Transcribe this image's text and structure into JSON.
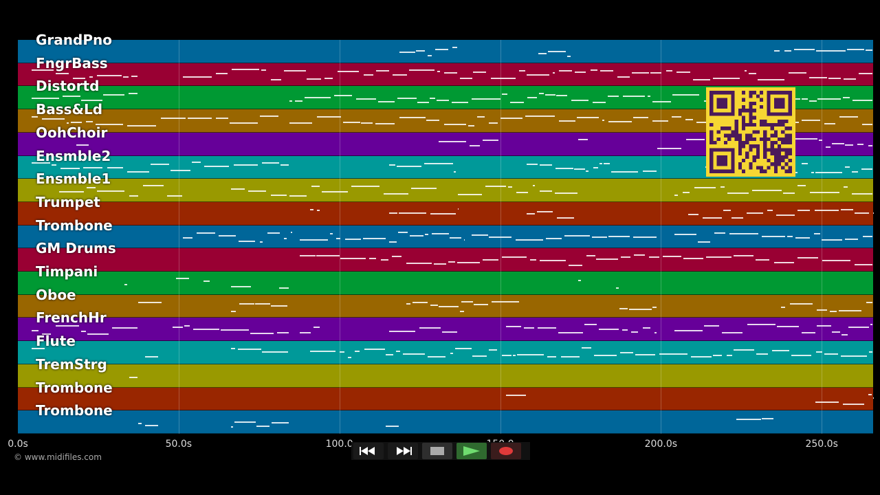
{
  "tracks": [
    {
      "name": "GrandPno",
      "color": "#006699",
      "notes": [
        [
          555,
          640
        ],
        [
          757,
          810
        ],
        [
          1100,
          1244
        ]
      ]
    },
    {
      "name": "FngrBass",
      "color": "#990033",
      "notes": [
        [
          20,
          175
        ],
        [
          240,
          420
        ],
        [
          420,
          1244
        ]
      ]
    },
    {
      "name": "Distortd",
      "color": "#009933",
      "notes": [
        [
          20,
          175
        ],
        [
          395,
          1244
        ]
      ]
    },
    {
      "name": "Bass&Ld",
      "color": "#996600",
      "notes": [
        [
          20,
          380
        ],
        [
          395,
          1244
        ]
      ]
    },
    {
      "name": "OohChoir",
      "color": "#660099",
      "notes": [
        [
          85,
          105
        ],
        [
          612,
          700
        ],
        [
          815,
          830
        ],
        [
          930,
          1000
        ],
        [
          1130,
          1244
        ]
      ]
    },
    {
      "name": "Ensmble2",
      "color": "#009999",
      "notes": [
        [
          20,
          395
        ],
        [
          540,
          640
        ],
        [
          740,
          930
        ],
        [
          1000,
          1244
        ]
      ]
    },
    {
      "name": "Ensmble1",
      "color": "#999900",
      "notes": [
        [
          60,
          240
        ],
        [
          310,
          610
        ],
        [
          640,
          815
        ],
        [
          955,
          1244
        ]
      ]
    },
    {
      "name": "Trumpet",
      "color": "#992600",
      "notes": [
        [
          425,
          440
        ],
        [
          540,
          640
        ],
        [
          740,
          810
        ],
        [
          975,
          1244
        ]
      ]
    },
    {
      "name": "Trombone",
      "color": "#006699",
      "notes": [
        [
          240,
          400
        ],
        [
          410,
          650
        ],
        [
          660,
          930
        ],
        [
          955,
          1244
        ]
      ]
    },
    {
      "name": "GM Drums",
      "color": "#990033",
      "notes": [
        [
          410,
          1244
        ]
      ]
    },
    {
      "name": "Timpani",
      "color": "#009933",
      "notes": [
        [
          155,
          160
        ],
        [
          230,
          250
        ],
        [
          270,
          280
        ],
        [
          310,
          340
        ],
        [
          380,
          395
        ],
        [
          815,
          820
        ],
        [
          870,
          875
        ]
      ]
    },
    {
      "name": "Oboe",
      "color": "#996600",
      "notes": [
        [
          175,
          210
        ],
        [
          310,
          395
        ],
        [
          565,
          650
        ],
        [
          645,
          730
        ],
        [
          875,
          930
        ],
        [
          1110,
          1244
        ]
      ]
    },
    {
      "name": "FrenchHr",
      "color": "#660099",
      "notes": [
        [
          20,
          175
        ],
        [
          225,
          395
        ],
        [
          410,
          440
        ],
        [
          540,
          640
        ],
        [
          710,
          930
        ],
        [
          955,
          1244
        ]
      ]
    },
    {
      "name": "Flute",
      "color": "#009999",
      "notes": [
        [
          20,
          40
        ],
        [
          185,
          205
        ],
        [
          310,
          395
        ],
        [
          425,
          1244
        ]
      ]
    },
    {
      "name": "TremStrg",
      "color": "#999900",
      "notes": [
        [
          162,
          175
        ]
      ]
    },
    {
      "name": "Trombone",
      "color": "#992600",
      "notes": [
        [
          710,
          740
        ],
        [
          1160,
          1244
        ]
      ]
    },
    {
      "name": "Trombone",
      "color": "#006699",
      "notes": [
        [
          175,
          205
        ],
        [
          310,
          395
        ],
        [
          535,
          555
        ],
        [
          1045,
          1100
        ]
      ]
    }
  ],
  "timeline": {
    "max_seconds": 266,
    "ticks": [
      {
        "value": 0,
        "label": "0.0s"
      },
      {
        "value": 50,
        "label": "50.0s"
      },
      {
        "value": 100,
        "label": "100.0"
      },
      {
        "value": 150,
        "label": "150.0"
      },
      {
        "value": 200,
        "label": "200.0s"
      },
      {
        "value": 250,
        "label": "250.0s"
      }
    ]
  },
  "copyright": "© www.midifiles.com",
  "qr_code": {
    "color": "#f6d733",
    "dark": "#4a1a5a",
    "icon": "qr-code"
  },
  "transport": {
    "rewind_icon": "rewind-icon",
    "forward_icon": "fast-forward-icon",
    "stop_icon": "stop-icon",
    "play_icon": "play-icon",
    "record_icon": "record-icon"
  }
}
